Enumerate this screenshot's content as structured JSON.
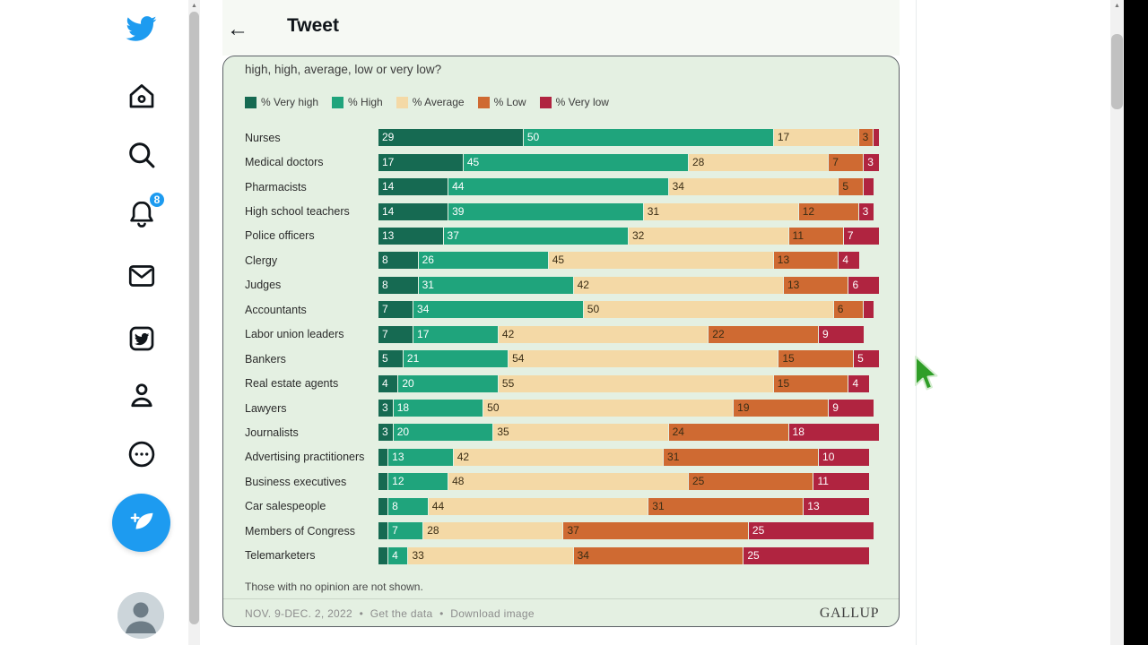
{
  "header": {
    "title": "Tweet"
  },
  "sidebar": {
    "notification_count": "8",
    "items": [
      "twitter-logo",
      "home",
      "explore",
      "notifications",
      "messages",
      "twitter-blue",
      "profile",
      "more",
      "compose",
      "account"
    ]
  },
  "card": {
    "question_line": "high, high, average, low or very low?",
    "footnote": "Those with no opinion are not shown.",
    "footer": {
      "date": "NOV. 9-DEC. 2, 2022",
      "separator": "•",
      "link_get_data": "Get the data",
      "link_download": "Download image",
      "brand": "GALLUP"
    }
  },
  "colors": {
    "twitter_blue": "#1d9bf0",
    "card_bg": "#e4f0e2",
    "very_high": "#166a52",
    "high": "#1fa47c",
    "average": "#f4d9a6",
    "low": "#cf6a32",
    "very_low": "#b02440",
    "cursor_green": "#2f9e27"
  },
  "chart_data": {
    "type": "bar",
    "orientation": "horizontal_stacked",
    "title": "high, high, average, low or very low?",
    "legend_position": "top",
    "x_unit": "percent",
    "xlim": [
      0,
      100
    ],
    "label_min": 3,
    "categories": [
      "Nurses",
      "Medical doctors",
      "Pharmacists",
      "High school teachers",
      "Police officers",
      "Clergy",
      "Judges",
      "Accountants",
      "Labor union leaders",
      "Bankers",
      "Real estate agents",
      "Lawyers",
      "Journalists",
      "Advertising practitioners",
      "Business executives",
      "Car salespeople",
      "Members of Congress",
      "Telemarketers"
    ],
    "series": [
      {
        "name": "% Very high",
        "color": "#166a52",
        "label_color": "#ffffff",
        "values": [
          29,
          17,
          14,
          14,
          13,
          8,
          8,
          7,
          7,
          5,
          4,
          3,
          3,
          2,
          2,
          2,
          2,
          2
        ]
      },
      {
        "name": "% High",
        "color": "#1fa47c",
        "label_color": "#ffffff",
        "values": [
          50,
          45,
          44,
          39,
          37,
          26,
          31,
          34,
          17,
          21,
          20,
          18,
          20,
          13,
          12,
          8,
          7,
          4
        ]
      },
      {
        "name": "% Average",
        "color": "#f4d9a6",
        "label_color": "#3a2d15",
        "values": [
          17,
          28,
          34,
          31,
          32,
          45,
          42,
          50,
          42,
          54,
          55,
          50,
          35,
          42,
          48,
          44,
          28,
          33
        ]
      },
      {
        "name": "% Low",
        "color": "#cf6a32",
        "label_color": "#3a2d15",
        "values": [
          3,
          7,
          5,
          12,
          11,
          13,
          13,
          6,
          22,
          15,
          15,
          19,
          24,
          31,
          25,
          31,
          37,
          34
        ]
      },
      {
        "name": "% Very low",
        "color": "#b02440",
        "label_color": "#ffffff",
        "values": [
          1,
          3,
          2,
          3,
          7,
          4,
          6,
          2,
          9,
          5,
          4,
          9,
          18,
          10,
          11,
          13,
          25,
          25
        ]
      }
    ],
    "footnote": "Those with no opinion are not shown.",
    "source": "NOV. 9-DEC. 2, 2022",
    "brand": "GALLUP"
  }
}
